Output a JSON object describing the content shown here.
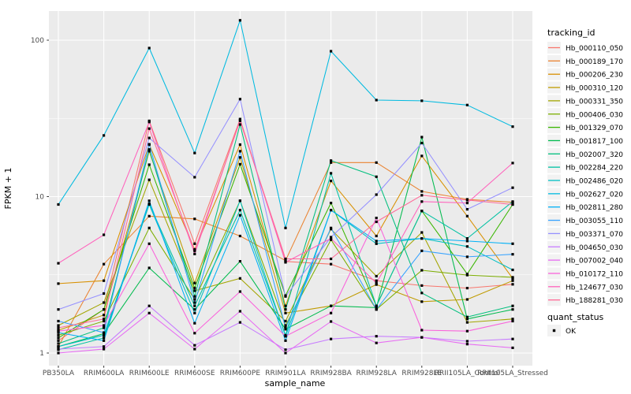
{
  "chart_data": {
    "type": "line",
    "title": "",
    "xlabel": "sample_name",
    "ylabel": "FPKM + 1",
    "y_scale": "log10",
    "ylim": [
      1,
      153
    ],
    "y_ticks": [
      {
        "label": "1",
        "value": 1
      },
      {
        "label": "10",
        "value": 10
      },
      {
        "label": "100",
        "value": 100
      }
    ],
    "y_minor_ticks": [
      3.162,
      31.62
    ],
    "grid": "on",
    "panel_bg": "#EBEBEB",
    "grid_color": "#FFFFFF",
    "point_color": "#000000",
    "categories": [
      "PB350LA",
      "RRIM600LA",
      "RRIM600LE",
      "RRIM600SE",
      "RRIM600PE",
      "RRIM901LA",
      "RRIM928BA",
      "RRIM928LA",
      "RRIM928LE",
      "RRII105LA_Control",
      "RRII105LA_Stressed"
    ],
    "legend": {
      "tracking_title": "tracking_id",
      "quant_title": "quant_status",
      "quant_items": [
        {
          "label": "OK",
          "marker": "black-square"
        }
      ],
      "position": "right"
    },
    "series": [
      {
        "name": "Hb_000110_050",
        "color": "#F8766D",
        "values": [
          1.2,
          1.9,
          30.5,
          5.0,
          31.3,
          3.85,
          3.7,
          2.9,
          2.7,
          2.6,
          2.75
        ]
      },
      {
        "name": "Hb_000189_170",
        "color": "#EA8331",
        "values": [
          1.1,
          3.7,
          7.5,
          7.2,
          5.6,
          3.9,
          16.5,
          16.5,
          10.8,
          9.6,
          9.2
        ]
      },
      {
        "name": "Hb_000206_230",
        "color": "#D89000",
        "values": [
          2.78,
          2.9,
          21.5,
          4.6,
          21.5,
          2.0,
          12.6,
          5.6,
          18.2,
          7.5,
          3.0
        ]
      },
      {
        "name": "Hb_000310_120",
        "color": "#C09B00",
        "values": [
          1.4,
          1.75,
          19.5,
          2.8,
          17.8,
          1.8,
          2.0,
          2.74,
          2.13,
          2.2,
          2.9
        ]
      },
      {
        "name": "Hb_000331_350",
        "color": "#A3A500",
        "values": [
          1.5,
          2.1,
          12.8,
          2.5,
          3.0,
          1.6,
          6.2,
          3.1,
          5.9,
          1.57,
          1.65
        ]
      },
      {
        "name": "Hb_000406_030",
        "color": "#7CAE00",
        "values": [
          1.3,
          1.6,
          6.3,
          2.2,
          9.4,
          1.5,
          5.3,
          1.9,
          3.38,
          3.15,
          3.05
        ]
      },
      {
        "name": "Hb_001329_070",
        "color": "#39B600",
        "values": [
          1.25,
          1.9,
          16.0,
          2.6,
          16.1,
          2.33,
          9.1,
          2.0,
          8.1,
          3.2,
          8.9
        ]
      },
      {
        "name": "Hb_001817_100",
        "color": "#00BB4E",
        "values": [
          1.1,
          1.33,
          3.5,
          1.9,
          3.86,
          1.42,
          2.0,
          1.95,
          24.0,
          1.65,
          1.9
        ]
      },
      {
        "name": "Hb_002007_320",
        "color": "#00BF7D",
        "values": [
          1.15,
          1.45,
          20.0,
          2.3,
          28.9,
          1.9,
          17.0,
          13.4,
          2.42,
          1.7,
          2.0
        ]
      },
      {
        "name": "Hb_002284_220",
        "color": "#00C1A3",
        "values": [
          1.05,
          1.25,
          9.0,
          2.0,
          8.2,
          1.3,
          14.1,
          2.0,
          8.1,
          5.4,
          9.3
        ]
      },
      {
        "name": "Hb_002486_020",
        "color": "#00BFC4",
        "values": [
          1.1,
          1.3,
          8.9,
          1.8,
          9.4,
          1.28,
          8.2,
          5.0,
          5.4,
          4.8,
          3.4
        ]
      },
      {
        "name": "Hb_002627_020",
        "color": "#00BAE0",
        "values": [
          8.9,
          24.6,
          89.0,
          19.0,
          134.0,
          6.3,
          85.0,
          41.4,
          41.0,
          38.5,
          28.0
        ]
      },
      {
        "name": "Hb_002811_280",
        "color": "#00B0F6",
        "values": [
          1.35,
          1.2,
          9.4,
          1.55,
          7.6,
          1.2,
          8.2,
          5.2,
          5.4,
          5.2,
          5.0
        ]
      },
      {
        "name": "Hb_003055_110",
        "color": "#35A2FF",
        "values": [
          1.6,
          1.35,
          21.6,
          2.1,
          19.5,
          1.45,
          6.3,
          1.9,
          4.5,
          4.12,
          4.28
        ]
      },
      {
        "name": "Hb_003371_070",
        "color": "#9590FF",
        "values": [
          1.9,
          2.4,
          23.7,
          13.3,
          42.0,
          2.3,
          5.5,
          10.3,
          22.0,
          8.3,
          11.4
        ]
      },
      {
        "name": "Hb_004650_030",
        "color": "#C77CFF",
        "values": [
          1.06,
          1.1,
          2.0,
          1.12,
          1.57,
          1.05,
          1.23,
          1.28,
          1.26,
          1.19,
          1.23
        ]
      },
      {
        "name": "Hb_007002_040",
        "color": "#E76BF3",
        "values": [
          1.0,
          1.06,
          1.8,
          1.06,
          1.85,
          1.0,
          1.59,
          1.16,
          1.26,
          1.14,
          1.08
        ]
      },
      {
        "name": "Hb_010172_110",
        "color": "#FA62DB",
        "values": [
          1.38,
          1.5,
          5.0,
          1.34,
          2.47,
          1.28,
          1.8,
          7.3,
          1.4,
          1.38,
          1.6
        ]
      },
      {
        "name": "Hb_124677_030",
        "color": "#FF62BC",
        "values": [
          3.75,
          5.7,
          30.0,
          4.3,
          31.0,
          3.8,
          5.4,
          2.8,
          9.3,
          9.1,
          16.4
        ]
      },
      {
        "name": "Hb_188281_030",
        "color": "#FF6A98",
        "values": [
          1.45,
          1.65,
          27.2,
          4.5,
          30.5,
          4.0,
          4.0,
          6.9,
          10.2,
          9.5,
          8.9
        ]
      }
    ]
  }
}
